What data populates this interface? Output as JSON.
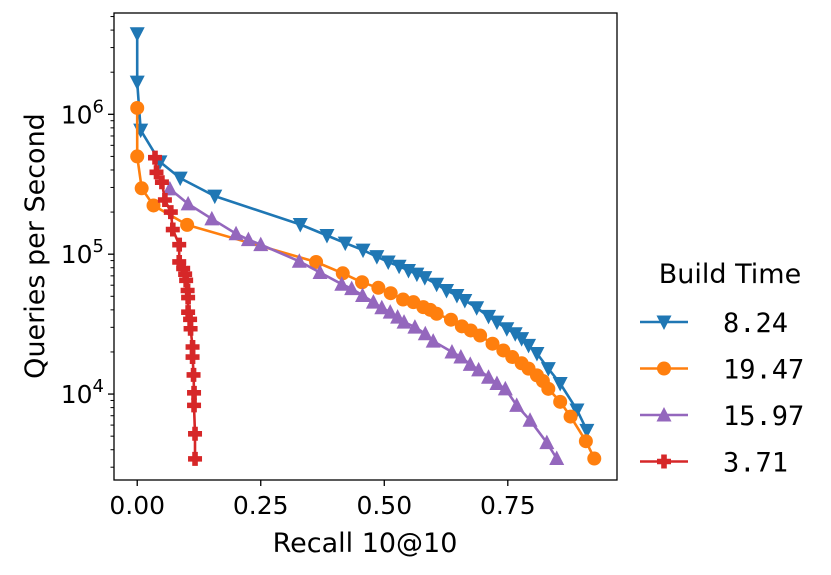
{
  "chart_data": {
    "type": "line",
    "xlabel": "Recall 10@10",
    "ylabel": "Queries per Second",
    "xlim": [
      -0.047,
      0.971
    ],
    "ylim": [
      2430,
      5300000
    ],
    "yscale": "log",
    "xticks": [
      0.0,
      0.25,
      0.5,
      0.75
    ],
    "xtick_labels": [
      "0.00",
      "0.25",
      "0.50",
      "0.75"
    ],
    "yticks": [
      10000,
      100000,
      1000000
    ],
    "ytick_labels": [
      {
        "base": "10",
        "exp": "4"
      },
      {
        "base": "10",
        "exp": "5"
      },
      {
        "base": "10",
        "exp": "6"
      }
    ],
    "grid": false,
    "legend": {
      "title": "Build Time",
      "placement": "right-outside"
    },
    "series": [
      {
        "name": "8.24",
        "color": "#1f77b4",
        "marker": "triangle-down",
        "x": [
          0.0,
          0.0,
          0.007,
          0.046,
          0.087,
          0.157,
          0.33,
          0.384,
          0.421,
          0.457,
          0.485,
          0.508,
          0.53,
          0.549,
          0.566,
          0.582,
          0.606,
          0.626,
          0.647,
          0.663,
          0.687,
          0.711,
          0.728,
          0.748,
          0.765,
          0.778,
          0.792,
          0.809,
          0.832,
          0.856,
          0.89,
          0.91
        ],
        "y": [
          3770000,
          1700000,
          770000,
          457000,
          350000,
          260000,
          163000,
          136000,
          120000,
          107000,
          96000,
          88000,
          82000,
          76500,
          72000,
          68000,
          61000,
          55000,
          50700,
          46700,
          41400,
          35900,
          32700,
          29300,
          27000,
          24900,
          22300,
          19500,
          15200,
          11900,
          7700,
          5500
        ]
      },
      {
        "name": "19.47",
        "color": "#ff7f0e",
        "marker": "circle",
        "x": [
          0.0,
          0.0,
          0.009,
          0.033,
          0.101,
          0.362,
          0.416,
          0.455,
          0.488,
          0.513,
          0.538,
          0.559,
          0.579,
          0.593,
          0.606,
          0.635,
          0.657,
          0.675,
          0.694,
          0.719,
          0.741,
          0.759,
          0.778,
          0.792,
          0.809,
          0.821,
          0.832,
          0.856,
          0.877,
          0.908,
          0.925
        ],
        "y": [
          1110000,
          500000,
          296000,
          223000,
          162000,
          88000,
          73000,
          63000,
          57500,
          52600,
          47400,
          45400,
          41800,
          40000,
          37500,
          34000,
          30500,
          28500,
          26200,
          22900,
          20500,
          18400,
          16600,
          15200,
          13600,
          12400,
          10900,
          8800,
          6900,
          4600,
          3460
        ]
      },
      {
        "name": "15.97",
        "color": "#9467bd",
        "marker": "triangle-up",
        "x": [
          0.066,
          0.103,
          0.151,
          0.2,
          0.225,
          0.25,
          0.328,
          0.37,
          0.414,
          0.434,
          0.456,
          0.478,
          0.495,
          0.512,
          0.527,
          0.54,
          0.562,
          0.583,
          0.599,
          0.637,
          0.655,
          0.674,
          0.691,
          0.711,
          0.728,
          0.745,
          0.768,
          0.795,
          0.829,
          0.849
        ],
        "y": [
          293000,
          229000,
          179000,
          140000,
          127000,
          117000,
          89000,
          74000,
          61000,
          56700,
          50700,
          45400,
          41400,
          38500,
          35500,
          32700,
          30100,
          27000,
          23900,
          20000,
          18400,
          16300,
          14900,
          13200,
          11900,
          10900,
          8300,
          6500,
          4500,
          3460
        ]
      },
      {
        "name": "3.71",
        "color": "#d62728",
        "marker": "plus-filled",
        "x": [
          0.036,
          0.039,
          0.05,
          0.056,
          0.068,
          0.072,
          0.085,
          0.085,
          0.093,
          0.097,
          0.099,
          0.102,
          0.103,
          0.103,
          0.107,
          0.108,
          0.112,
          0.112,
          0.114,
          0.115,
          0.115,
          0.117,
          0.117
        ],
        "y": [
          490000,
          385000,
          327000,
          244000,
          200000,
          150000,
          117000,
          88000,
          79000,
          72000,
          65000,
          55000,
          49000,
          38500,
          34200,
          29300,
          21700,
          18400,
          13700,
          10200,
          8300,
          5200,
          3440
        ]
      }
    ]
  }
}
